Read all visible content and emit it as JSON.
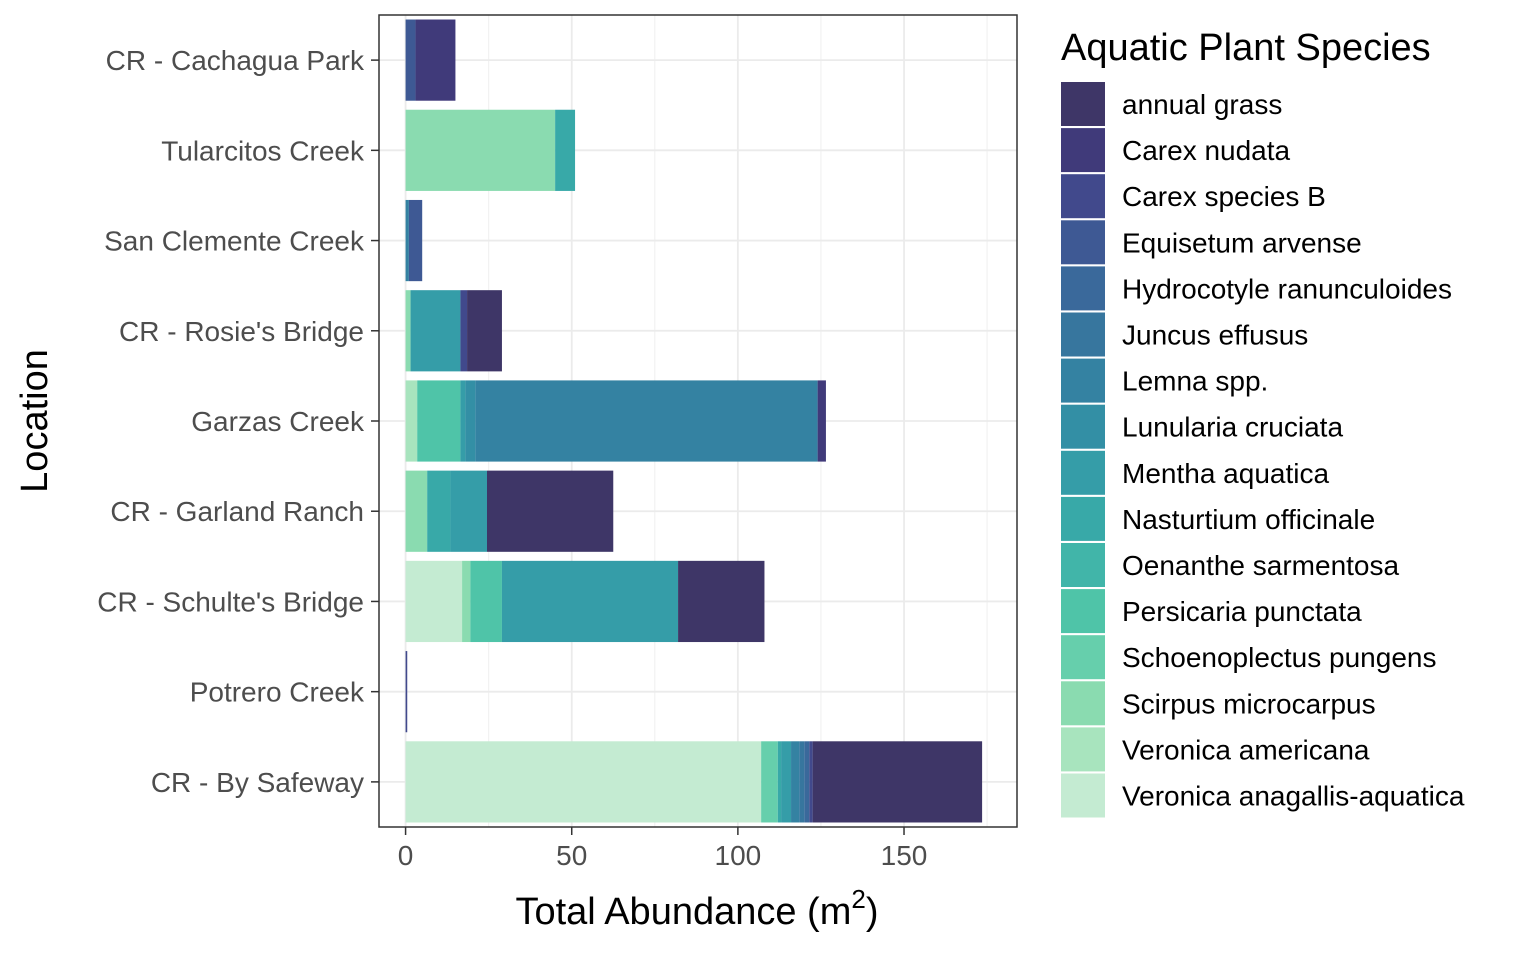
{
  "chart_data": {
    "type": "bar",
    "orientation": "horizontal",
    "stacked": true,
    "xlabel_main": "Total Abundance (m",
    "xlabel_sup": "2",
    "xlabel_close": ")",
    "ylabel": "Location",
    "xlim": [
      -8,
      184
    ],
    "xticks": [
      0,
      50,
      100,
      150
    ],
    "grid": true,
    "legend_position": "right",
    "legend_title": "Aquatic Plant Species",
    "categories": [
      "CR - Cachagua Park",
      "Tularcitos Creek",
      "San Clemente Creek",
      "CR - Rosie's Bridge",
      "Garzas Creek",
      "CR - Garland Ranch",
      "CR - Schulte's Bridge",
      "Potrero Creek",
      "CR - By Safeway"
    ],
    "series": [
      {
        "name": "annual grass",
        "color": "#3e3667",
        "values": [
          0,
          0,
          0,
          10.5,
          0,
          38,
          26,
          0,
          51
        ]
      },
      {
        "name": "Carex nudata",
        "color": "#403a7a",
        "values": [
          12,
          0,
          0,
          0,
          2.5,
          0,
          0,
          0,
          0
        ]
      },
      {
        "name": "Carex species B",
        "color": "#41498c",
        "values": [
          0,
          0,
          0,
          2,
          0,
          0,
          0,
          0.5,
          1
        ]
      },
      {
        "name": "Equisetum arvense",
        "color": "#3e5994",
        "values": [
          3,
          0,
          4,
          0,
          0,
          0,
          0,
          0,
          0
        ]
      },
      {
        "name": "Hydrocotyle ranunculoides",
        "color": "#3a699b",
        "values": [
          0,
          0,
          0,
          0,
          0,
          0,
          0,
          0,
          1.5
        ]
      },
      {
        "name": "Juncus effusus",
        "color": "#37769e",
        "values": [
          0,
          0,
          0,
          0,
          0,
          0,
          0,
          0,
          1.5
        ]
      },
      {
        "name": "Lemna spp.",
        "color": "#3482a2",
        "values": [
          0,
          0,
          1,
          0,
          103,
          0,
          0,
          0,
          2.5
        ]
      },
      {
        "name": "Lunularia cruciata",
        "color": "#338fa5",
        "values": [
          0,
          0,
          0,
          0,
          3,
          0,
          0,
          0,
          0
        ]
      },
      {
        "name": "Mentha aquatica",
        "color": "#359da8",
        "values": [
          0,
          0,
          0,
          15,
          1.5,
          11,
          53,
          0,
          3
        ]
      },
      {
        "name": "Nasturtium officinale",
        "color": "#38a9a8",
        "values": [
          0,
          6,
          0,
          0,
          0,
          7,
          0,
          0,
          1
        ]
      },
      {
        "name": "Oenanthe sarmentosa",
        "color": "#41b5a9",
        "values": [
          0,
          0,
          0,
          0,
          0,
          0,
          0,
          0,
          0
        ]
      },
      {
        "name": "Persicaria punctata",
        "color": "#4fc4a8",
        "values": [
          0,
          0,
          0,
          0,
          13,
          0,
          9.5,
          0,
          0
        ]
      },
      {
        "name": "Schoenoplectus pungens",
        "color": "#66cfac",
        "values": [
          0,
          0,
          0,
          0,
          0,
          0,
          0,
          0,
          5
        ]
      },
      {
        "name": "Scirpus microcarpus",
        "color": "#8adbb0",
        "values": [
          0,
          45,
          0,
          1.5,
          0,
          6.5,
          2.5,
          0,
          0
        ]
      },
      {
        "name": "Veronica americana",
        "color": "#a8e4be",
        "values": [
          0,
          0,
          0,
          0,
          3.5,
          0,
          0,
          0,
          0
        ]
      },
      {
        "name": "Veronica anagallis-aquatica",
        "color": "#c4ebd2",
        "values": [
          0,
          0,
          0,
          0,
          0,
          0,
          17,
          0,
          107
        ]
      }
    ]
  }
}
